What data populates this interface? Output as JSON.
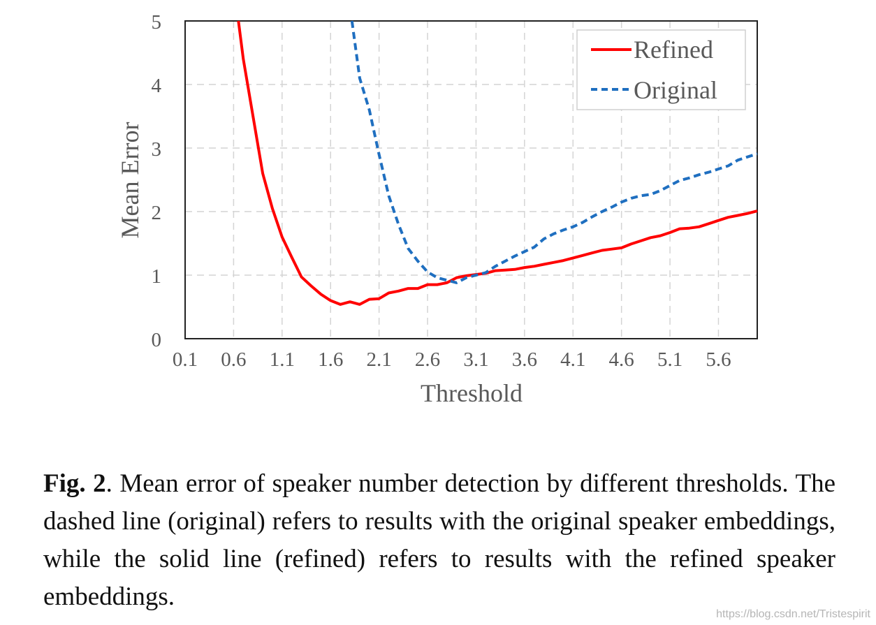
{
  "chart_data": {
    "type": "line",
    "xlabel": "Threshold",
    "ylabel": "Mean Error",
    "xlim": [
      0.1,
      6.0
    ],
    "ylim": [
      0,
      5
    ],
    "x_ticks": [
      "0.1",
      "0.6",
      "1.1",
      "1.6",
      "2.1",
      "2.6",
      "3.1",
      "3.6",
      "4.1",
      "4.6",
      "5.1",
      "5.6"
    ],
    "y_ticks": [
      "0",
      "1",
      "2",
      "3",
      "4",
      "5"
    ],
    "grid": true,
    "legend_position": "top-right",
    "series": [
      {
        "name": "Refined",
        "color": "#ff0000",
        "style": "solid",
        "x": [
          0.65,
          0.7,
          0.8,
          0.9,
          1.0,
          1.1,
          1.2,
          1.3,
          1.4,
          1.5,
          1.6,
          1.7,
          1.8,
          1.9,
          2.0,
          2.1,
          2.2,
          2.3,
          2.4,
          2.5,
          2.6,
          2.7,
          2.8,
          2.9,
          3.0,
          3.1,
          3.2,
          3.3,
          3.4,
          3.5,
          3.6,
          3.7,
          3.8,
          3.9,
          4.0,
          4.1,
          4.2,
          4.3,
          4.4,
          4.5,
          4.6,
          4.7,
          4.8,
          4.9,
          5.0,
          5.1,
          5.2,
          5.3,
          5.4,
          5.5,
          5.6,
          5.7,
          5.8,
          5.9,
          6.0
        ],
        "y": [
          5.0,
          4.4,
          3.5,
          2.6,
          2.05,
          1.6,
          1.28,
          0.97,
          0.83,
          0.7,
          0.6,
          0.54,
          0.58,
          0.54,
          0.62,
          0.63,
          0.72,
          0.75,
          0.79,
          0.79,
          0.85,
          0.85,
          0.88,
          0.96,
          0.99,
          1.01,
          1.03,
          1.07,
          1.08,
          1.09,
          1.12,
          1.14,
          1.17,
          1.2,
          1.23,
          1.27,
          1.31,
          1.35,
          1.39,
          1.41,
          1.43,
          1.49,
          1.54,
          1.59,
          1.62,
          1.67,
          1.73,
          1.74,
          1.76,
          1.81,
          1.86,
          1.91,
          1.94,
          1.97,
          2.01
        ]
      },
      {
        "name": "Original",
        "color": "#1f6fc0",
        "style": "dashed",
        "x": [
          1.82,
          1.9,
          2.0,
          2.1,
          2.2,
          2.3,
          2.4,
          2.5,
          2.6,
          2.7,
          2.8,
          2.9,
          3.0,
          3.1,
          3.2,
          3.3,
          3.4,
          3.5,
          3.6,
          3.7,
          3.8,
          3.9,
          4.0,
          4.1,
          4.2,
          4.3,
          4.4,
          4.5,
          4.6,
          4.7,
          4.8,
          4.9,
          5.0,
          5.1,
          5.2,
          5.3,
          5.4,
          5.5,
          5.6,
          5.7,
          5.8,
          5.9,
          6.0
        ],
        "y": [
          5.0,
          4.1,
          3.6,
          2.9,
          2.25,
          1.8,
          1.42,
          1.22,
          1.05,
          0.96,
          0.92,
          0.88,
          0.96,
          1.0,
          1.04,
          1.14,
          1.22,
          1.3,
          1.37,
          1.44,
          1.57,
          1.65,
          1.71,
          1.76,
          1.83,
          1.92,
          2.0,
          2.07,
          2.15,
          2.21,
          2.25,
          2.27,
          2.33,
          2.41,
          2.49,
          2.53,
          2.58,
          2.62,
          2.67,
          2.72,
          2.81,
          2.86,
          2.91
        ]
      }
    ]
  },
  "caption": {
    "label": "Fig. 2",
    "text": ".  Mean error of speaker number detection by different thresholds.  The dashed line (original) refers to results with the original speaker embeddings, while the solid line (refined) refers to results with the refined speaker embeddings."
  },
  "watermark": "https://blog.csdn.net/Tristespirit"
}
